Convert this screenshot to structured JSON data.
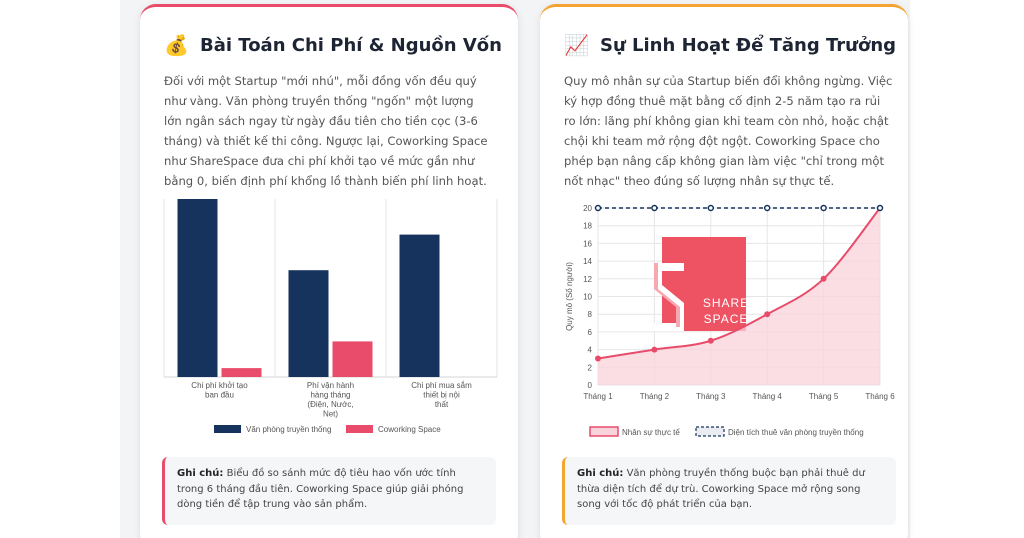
{
  "left_card": {
    "icon": "money-bag-icon",
    "icon_glyph": "💰",
    "title": "Bài Toán Chi Phí & Nguồn Vốn",
    "description": "Đối với một Startup \"mới nhú\", mỗi đồng vốn đều quý như vàng. Văn phòng truyền thống \"ngốn\" một lượng lớn ngân sách ngay từ ngày đầu tiên cho tiền cọc (3-6 tháng) và thiết kế thi công. Ngược lại, Coworking Space như ShareSpace đưa chi phí khởi tạo về mức gần như bằng 0, biến định phí khổng lồ thành biến phí linh hoạt.",
    "note_label": "Ghi chú:",
    "note_text": " Biểu đồ so sánh mức độ tiêu hao vốn ước tính trong 6 tháng đầu tiên. Coworking Space giúp giải phóng dòng tiền để tập trung vào sản phẩm."
  },
  "right_card": {
    "icon": "chart-increasing-icon",
    "icon_glyph": "📈",
    "title": "Sự Linh Hoạt Để Tăng Trưởng",
    "description": "Quy mô nhân sự của Startup biến đổi không ngừng. Việc ký hợp đồng thuê mặt bằng cố định 2-5 năm tạo ra rủi ro lớn: lãng phí không gian khi team còn nhỏ, hoặc chật chội khi team mở rộng đột ngột. Coworking Space cho phép bạn nâng cấp không gian làm việc \"chỉ trong một nốt nhạc\" theo đúng số lượng nhân sự thực tế.",
    "note_label": "Ghi chú:",
    "note_text": " Văn phòng truyền thống buộc bạn phải thuê dư thừa diện tích để dự trù. Coworking Space mở rộng song song với tốc độ phát triển của bạn.",
    "logo_text": [
      "SHARE",
      "SPACE"
    ]
  },
  "chart_data": [
    {
      "type": "bar",
      "categories": [
        [
          "Chi phí khởi tạo",
          "ban đầu"
        ],
        [
          "Phí vận hành",
          "hàng tháng",
          "(Điện, Nước,",
          "Net)"
        ],
        [
          "Chi phí mua sắm",
          "thiết bị nội",
          "thất"
        ]
      ],
      "series": [
        {
          "name": "Văn phòng truyền thống",
          "values": [
            100,
            60,
            80
          ],
          "color": "#16335e"
        },
        {
          "name": "Coworking Space",
          "values": [
            5,
            20,
            0
          ],
          "color": "#e84c6a"
        }
      ],
      "ylim": [
        0,
        100
      ],
      "grid": "vertical",
      "legend": "bottom"
    },
    {
      "type": "line",
      "x": [
        "Tháng 1",
        "Tháng 2",
        "Tháng 3",
        "Tháng 4",
        "Tháng 5",
        "Tháng 6"
      ],
      "ylabel": "Quy mô (Số người)",
      "ylim": [
        0,
        20
      ],
      "yticks": [
        0,
        2,
        4,
        6,
        8,
        10,
        12,
        14,
        16,
        18,
        20
      ],
      "series": [
        {
          "name": "Nhân sự thực tế",
          "values": [
            3,
            4,
            5,
            8,
            12,
            20
          ],
          "color": "#e84c6a",
          "fill": "#f9d3db"
        },
        {
          "name": "Diện tích thuê văn phòng truyền thống",
          "values": [
            20,
            20,
            20,
            20,
            20,
            20
          ],
          "color": "#16335e",
          "dashed": true
        }
      ],
      "grid": true,
      "legend": "bottom"
    }
  ]
}
